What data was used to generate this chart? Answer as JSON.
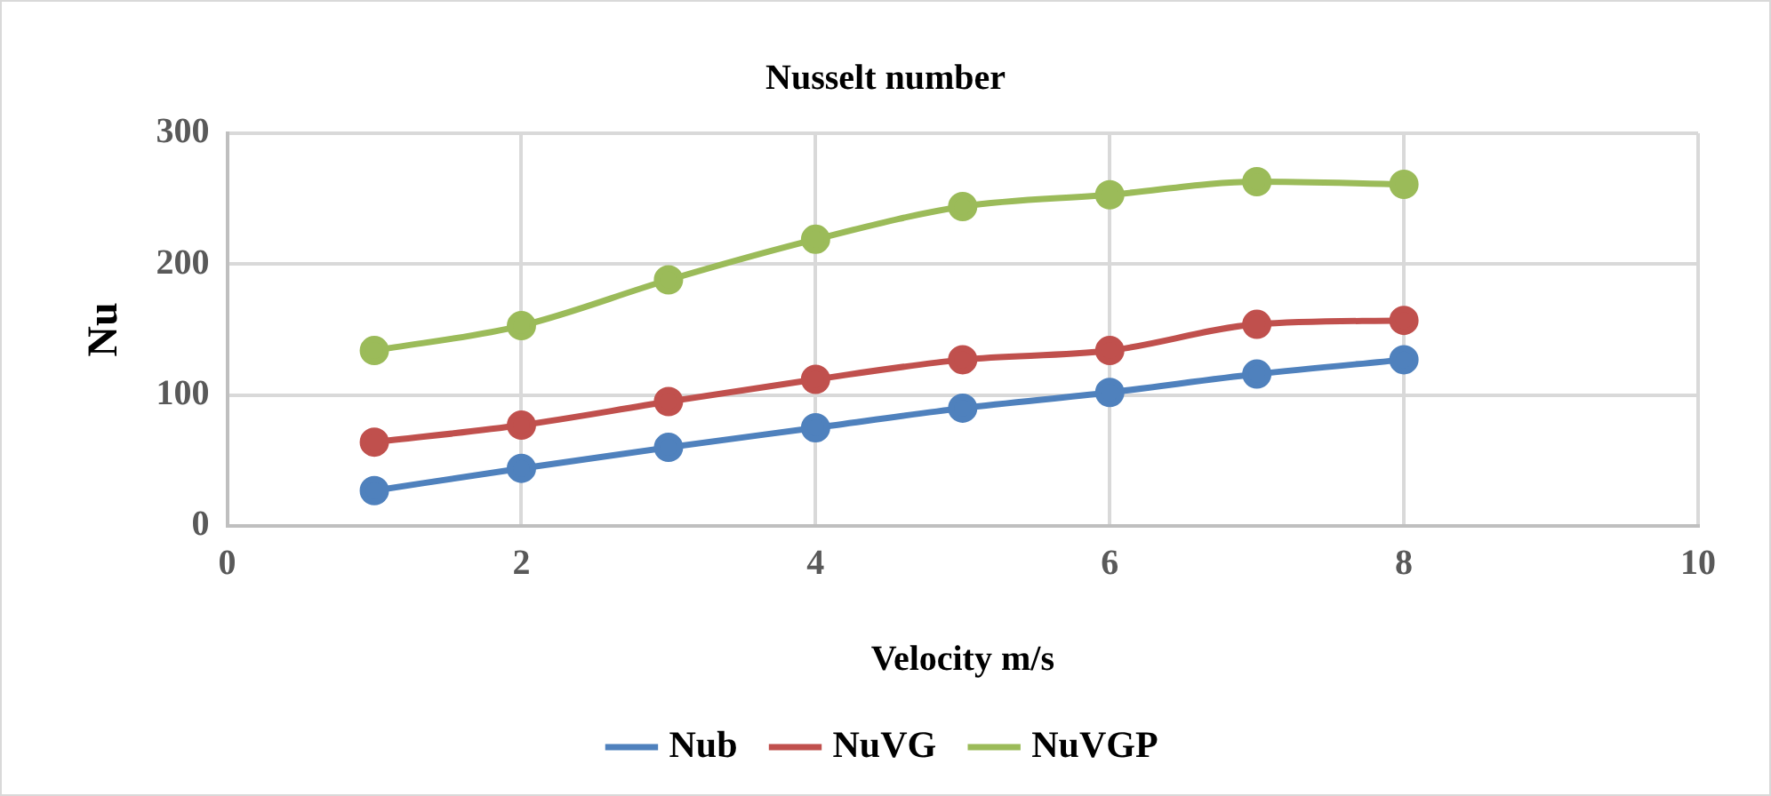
{
  "chart_data": {
    "type": "line",
    "title": "Nusselt number",
    "xlabel": "Velocity m/s",
    "ylabel": "Nu",
    "x": [
      1,
      2,
      3,
      4,
      5,
      6,
      7,
      8
    ],
    "series": [
      {
        "name": "Nub",
        "color": "#4f81bd",
        "values": [
          27,
          44,
          60,
          75,
          90,
          102,
          116,
          127
        ]
      },
      {
        "name": "NuVG",
        "color": "#c0504d",
        "values": [
          64,
          77,
          95,
          112,
          127,
          134,
          154,
          157
        ]
      },
      {
        "name": "NuVGP",
        "color": "#9bbb59",
        "values": [
          134,
          153,
          188,
          219,
          244,
          253,
          263,
          261
        ]
      }
    ],
    "xlim": [
      0,
      10
    ],
    "xticks": [
      0,
      2,
      4,
      6,
      8,
      10
    ],
    "ylim": [
      0,
      300
    ],
    "yticks": [
      0,
      100,
      200,
      300
    ],
    "grid": true,
    "legend": "bottom",
    "marker": "circle",
    "line_style": "solid"
  }
}
